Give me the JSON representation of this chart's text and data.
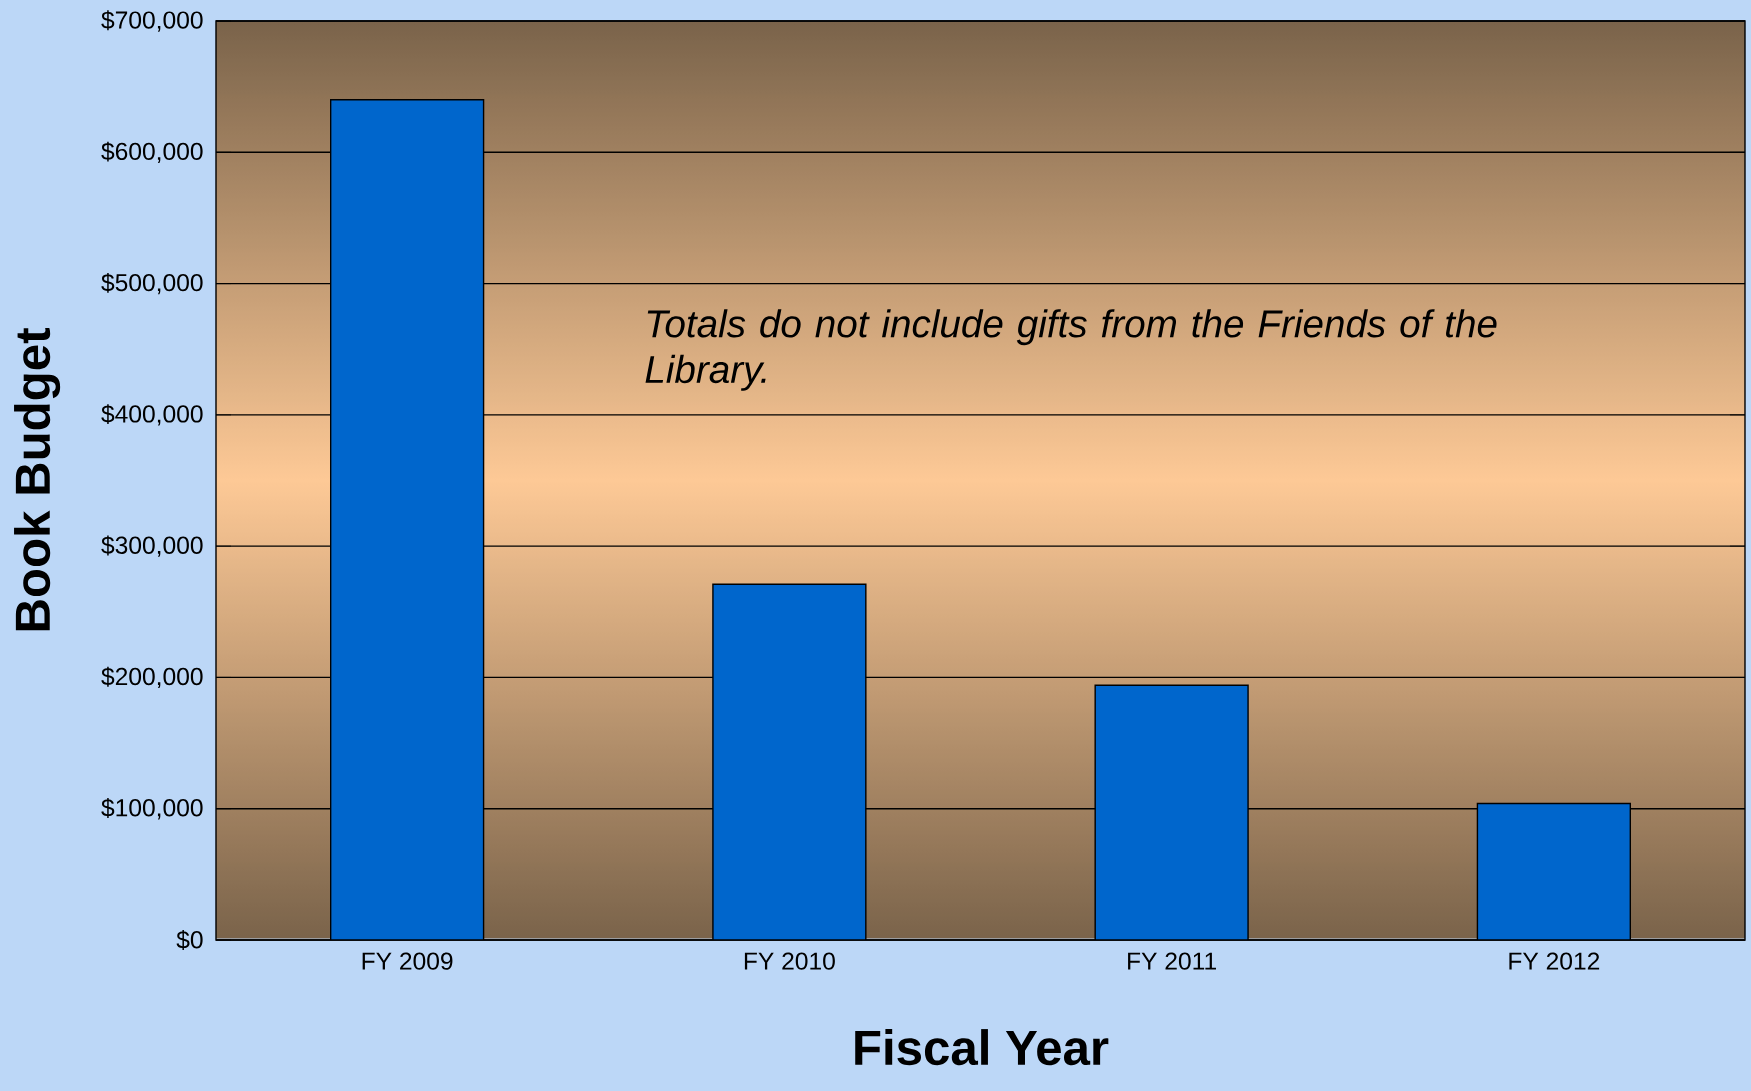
{
  "chart_data": {
    "type": "bar",
    "xlabel": "Fiscal Year",
    "ylabel": "Book Budget",
    "categories": [
      "FY 2009",
      "FY 2010",
      "FY 2011",
      "FY 2012"
    ],
    "values": [
      640000,
      271000,
      194000,
      104000
    ],
    "color": "#0066cc",
    "ylim": [
      0,
      700000
    ],
    "yticks": [
      {
        "value": 0,
        "label": "$0"
      },
      {
        "value": 100000,
        "label": "$100,000"
      },
      {
        "value": 200000,
        "label": "$200,000"
      },
      {
        "value": 300000,
        "label": "$300,000"
      },
      {
        "value": 400000,
        "label": "$400,000"
      },
      {
        "value": 500000,
        "label": "$500,000"
      },
      {
        "value": 600000,
        "label": "$600,000"
      },
      {
        "value": 700000,
        "label": "$700,000"
      }
    ],
    "grid": "y",
    "annotations": [
      "*Totals do not include gifts from the Friends of the Library.*"
    ]
  }
}
